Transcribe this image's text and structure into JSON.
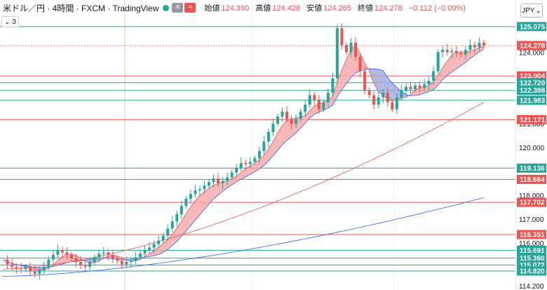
{
  "header": {
    "symbol": "米ドル／円 · 4時間 · FXCM · TradingView",
    "tag1": "≡",
    "tag2": "≈",
    "open_label": "始値",
    "open": "124.390",
    "high_label": "高値",
    "high": "124.428",
    "low_label": "安値",
    "low": "124.265",
    "close_label": "終値",
    "close": "124.278",
    "change": "−0.112 (−0.09%)",
    "indicator_count": "3",
    "currency": "JPY"
  },
  "colors": {
    "up": "#26a69a",
    "down": "#ef5350",
    "ma_short": "#ef5350",
    "ma_long": "#2962ff",
    "band_fill_up": "#f7a6a6",
    "band_fill_down": "#9fa8da",
    "support_line": "#26a69a",
    "resistance_line": "#ef5350",
    "axis_text": "#131722"
  },
  "chart_data": {
    "type": "candlestick",
    "ylim": [
      114.2,
      125.6
    ],
    "y_ticks": [
      "124.000",
      "121.000",
      "120.000",
      "118.000",
      "117.000",
      "116.000",
      "114.200"
    ],
    "price_lines": [
      {
        "value": 125.075,
        "label": "125.075",
        "kind": "support"
      },
      {
        "value": 124.278,
        "label": "124.278",
        "kind": "current"
      },
      {
        "value": 123.004,
        "label": "123.004",
        "kind": "resistance"
      },
      {
        "value": 122.72,
        "label": "122.720",
        "kind": "support"
      },
      {
        "value": 122.398,
        "label": "122.398",
        "kind": "support"
      },
      {
        "value": 121.983,
        "label": "121.983",
        "kind": "support"
      },
      {
        "value": 121.171,
        "label": "121.171",
        "kind": "resistance"
      },
      {
        "value": 119.136,
        "label": "119.136",
        "kind": "support"
      },
      {
        "value": 118.664,
        "label": "118.664",
        "kind": "resistance"
      },
      {
        "value": 117.702,
        "label": "117.702",
        "kind": "resistance"
      },
      {
        "value": 116.351,
        "label": "116.351",
        "kind": "resistance"
      },
      {
        "value": 115.691,
        "label": "115.691",
        "kind": "support"
      },
      {
        "value": 115.36,
        "label": "115.360",
        "kind": "support"
      },
      {
        "value": 115.072,
        "label": "115.072",
        "kind": "support"
      },
      {
        "value": 114.82,
        "label": "114.820",
        "kind": "support"
      }
    ],
    "price_path": [
      115.3,
      115.1,
      115.0,
      114.95,
      114.9,
      115.0,
      114.8,
      114.7,
      114.85,
      115.0,
      115.3,
      115.5,
      115.7,
      115.6,
      115.5,
      115.35,
      115.2,
      115.05,
      115.0,
      115.2,
      115.4,
      115.55,
      115.6,
      115.5,
      115.35,
      115.25,
      115.1,
      115.2,
      115.25,
      115.4,
      115.55,
      115.7,
      115.8,
      115.95,
      116.1,
      116.3,
      116.6,
      116.9,
      117.2,
      117.55,
      117.85,
      118.05,
      118.2,
      118.25,
      118.4,
      118.55,
      118.7,
      118.5,
      118.6,
      118.75,
      118.95,
      119.15,
      119.35,
      119.3,
      119.4,
      119.55,
      119.85,
      120.25,
      120.65,
      121.0,
      121.3,
      121.5,
      121.2,
      121.0,
      121.2,
      121.5,
      121.8,
      122.2,
      122.0,
      121.6,
      121.9,
      122.3,
      122.9,
      125.0,
      124.3,
      124.0,
      124.4,
      123.8,
      123.2,
      122.4,
      122.2,
      121.8,
      122.1,
      122.3,
      121.9,
      121.6,
      122.1,
      122.4,
      122.55,
      122.45,
      122.6,
      122.5,
      122.65,
      122.8,
      123.2,
      124.0,
      124.1,
      124.0,
      124.05,
      123.95,
      123.9,
      124.1,
      124.3,
      124.2,
      124.4,
      124.278
    ],
    "ma_long": [
      114.6,
      117.9
    ],
    "ma_mid": [
      114.9,
      121.9
    ]
  }
}
